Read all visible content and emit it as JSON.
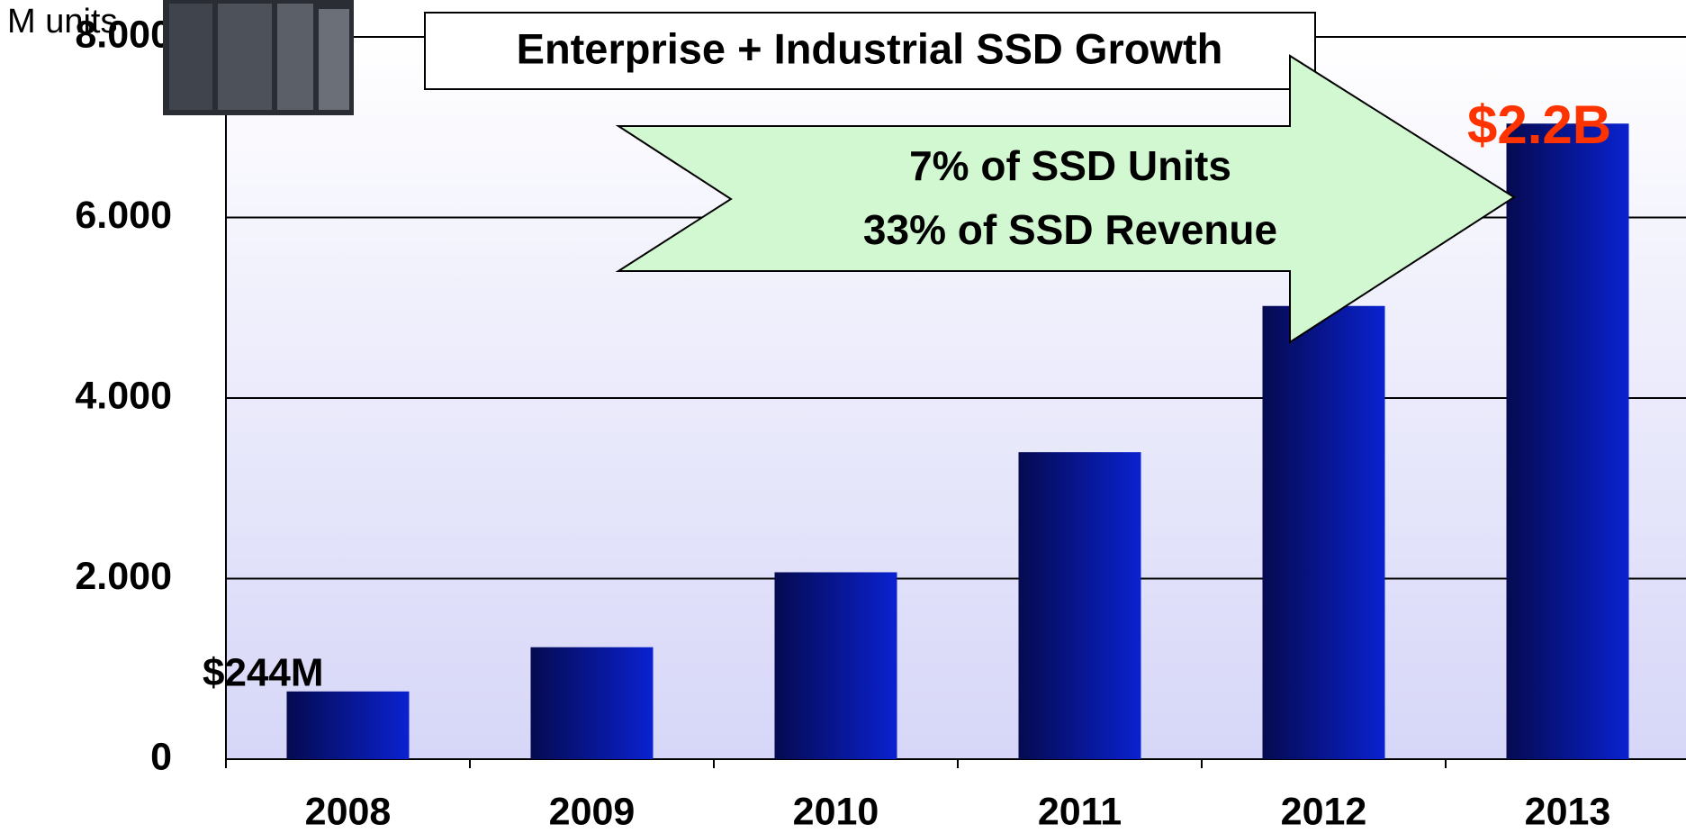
{
  "chart_data": {
    "type": "bar",
    "title": "Enterprise + Industrial SSD Growth",
    "y_label": "M units",
    "categories": [
      "2008",
      "2009",
      "2010",
      "2011",
      "2012",
      "2013"
    ],
    "values": [
      750,
      1240,
      2070,
      3400,
      5020,
      7040
    ],
    "color": "#0a22c8",
    "ylim": [
      0,
      8000
    ],
    "yticks": [
      0,
      {
        "value": 2000,
        "label": "2.000"
      },
      {
        "value": 4000,
        "label": "4.000"
      },
      {
        "value": 6000,
        "label": "6.000"
      },
      {
        "value": 8000,
        "label": "8.000"
      }
    ],
    "grid": true,
    "annotations": [
      "$244M",
      "$2.2B",
      "7% of SSD Units",
      "33% of SSD Revenue"
    ]
  }
}
